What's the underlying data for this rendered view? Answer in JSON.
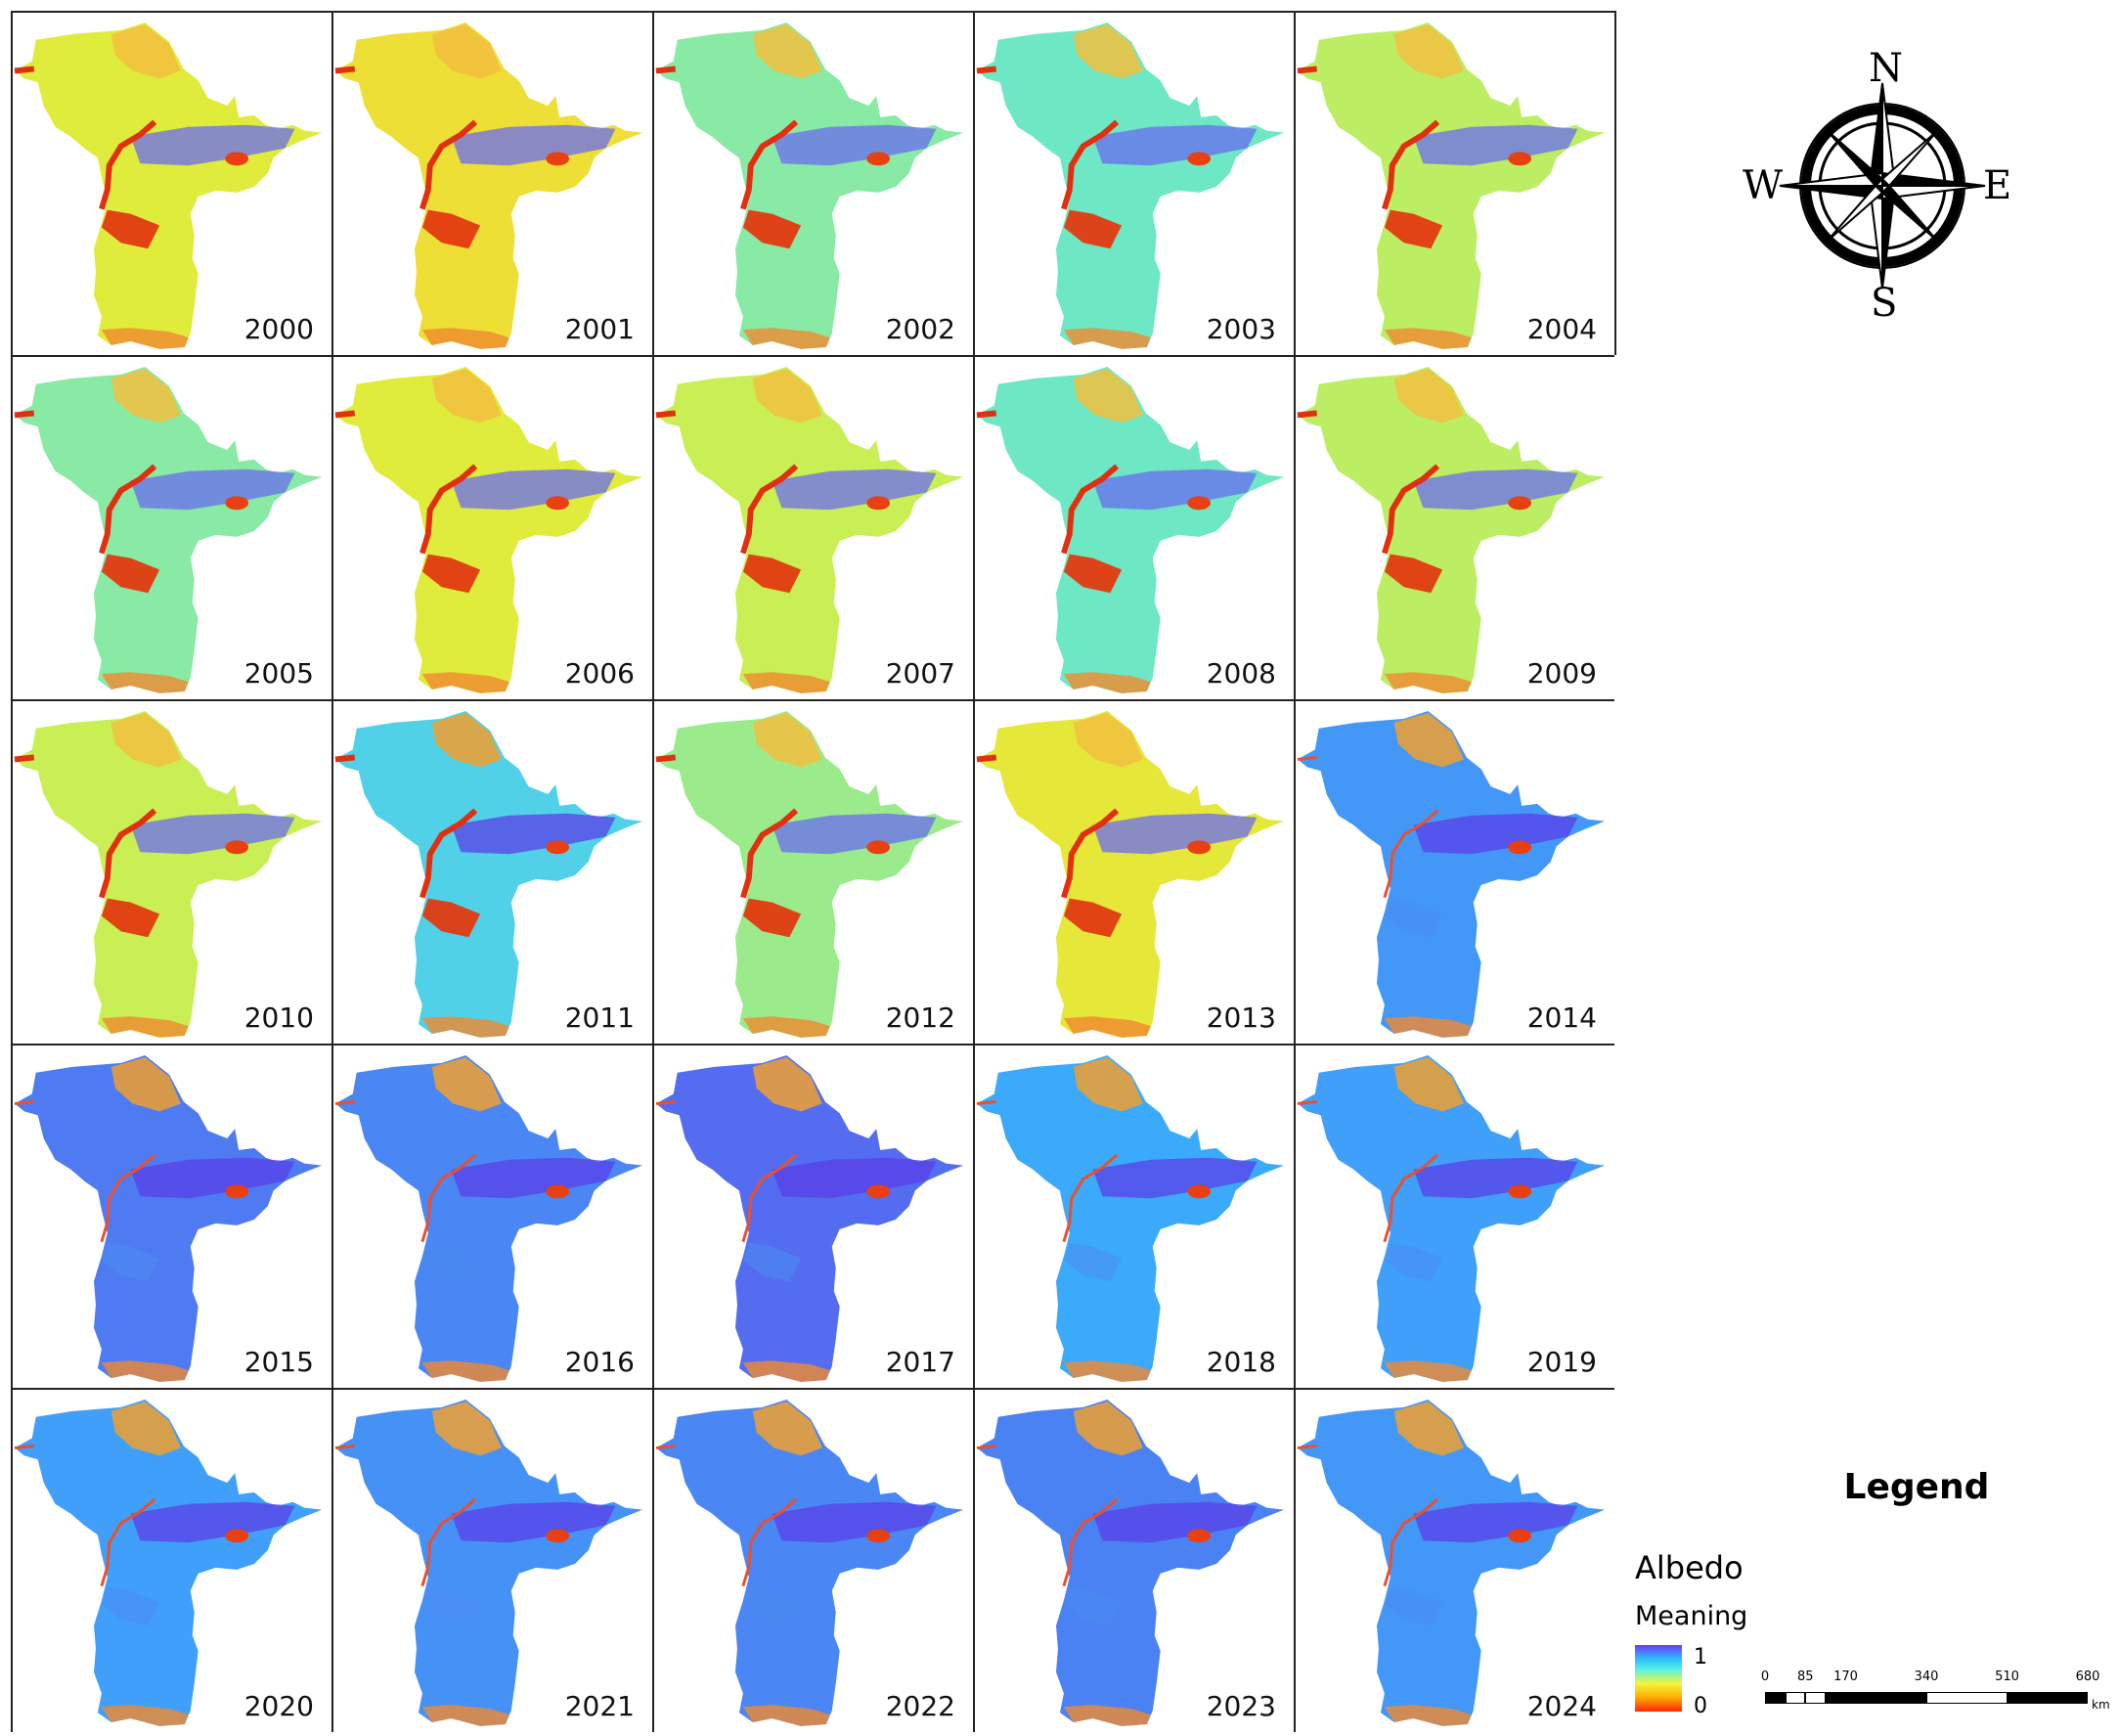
{
  "panels": [
    {
      "year": "2000",
      "tone": 0.3
    },
    {
      "year": "2001",
      "tone": 0.15
    },
    {
      "year": "2002",
      "tone": 0.48
    },
    {
      "year": "2003",
      "tone": 0.52
    },
    {
      "year": "2004",
      "tone": 0.4
    },
    {
      "year": "2005",
      "tone": 0.48
    },
    {
      "year": "2006",
      "tone": 0.3
    },
    {
      "year": "2007",
      "tone": 0.38
    },
    {
      "year": "2008",
      "tone": 0.52
    },
    {
      "year": "2009",
      "tone": 0.4
    },
    {
      "year": "2010",
      "tone": 0.38
    },
    {
      "year": "2011",
      "tone": 0.62
    },
    {
      "year": "2012",
      "tone": 0.45
    },
    {
      "year": "2013",
      "tone": 0.25
    },
    {
      "year": "2014",
      "tone": 0.8
    },
    {
      "year": "2015",
      "tone": 0.88
    },
    {
      "year": "2016",
      "tone": 0.85
    },
    {
      "year": "2017",
      "tone": 0.92
    },
    {
      "year": "2018",
      "tone": 0.75
    },
    {
      "year": "2019",
      "tone": 0.78
    },
    {
      "year": "2020",
      "tone": 0.78
    },
    {
      "year": "2021",
      "tone": 0.82
    },
    {
      "year": "2022",
      "tone": 0.85
    },
    {
      "year": "2023",
      "tone": 0.86
    },
    {
      "year": "2024",
      "tone": 0.8
    }
  ],
  "compass": {
    "north": "N",
    "south": "S",
    "east": "E",
    "west": "W"
  },
  "legend": {
    "title": "Legend",
    "variable": "Albedo",
    "meaning_label": "Meaning",
    "max_label": "1",
    "min_label": "0",
    "ramp_colors": [
      "#ff2400",
      "#ffb000",
      "#f5f53a",
      "#54f0e6",
      "#2fb8ff",
      "#6a3cf5"
    ]
  },
  "scalebar": {
    "ticks": [
      "0",
      "85",
      "170",
      "340",
      "510",
      "680"
    ],
    "tick_values": [
      0,
      85,
      170,
      340,
      510,
      680
    ],
    "unit": "km"
  }
}
